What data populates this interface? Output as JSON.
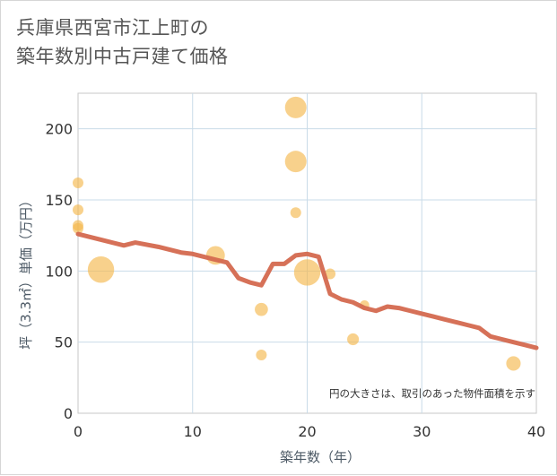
{
  "chart_data": {
    "type": "scatter",
    "title_lines": [
      "兵庫県西宮市江上町の",
      "築年数別中古戸建て価格"
    ],
    "xlabel": "築年数（年）",
    "ylabel": "坪（3.3㎡）単価（万円）",
    "xlim": [
      0,
      40
    ],
    "ylim": [
      0,
      225
    ],
    "x_ticks": [
      0,
      10,
      20,
      30,
      40
    ],
    "y_ticks": [
      0,
      50,
      100,
      150,
      200
    ],
    "grid": true,
    "note": "円の大きさは、取引のあった物件面積を示す",
    "colors": {
      "bubble": "#f5b84e",
      "trend": "#d4694f",
      "grid": "#c9dbe8",
      "plot_border": "#c7c7c7"
    },
    "bubbles": [
      {
        "x": 0,
        "y": 162,
        "size": 1
      },
      {
        "x": 0,
        "y": 143,
        "size": 1
      },
      {
        "x": 0,
        "y": 132,
        "size": 1
      },
      {
        "x": 0,
        "y": 130,
        "size": 1
      },
      {
        "x": 2,
        "y": 101,
        "size": 6
      },
      {
        "x": 12,
        "y": 111,
        "size": 3
      },
      {
        "x": 16,
        "y": 73,
        "size": 1.5
      },
      {
        "x": 16,
        "y": 41,
        "size": 1
      },
      {
        "x": 19,
        "y": 215,
        "size": 4
      },
      {
        "x": 19,
        "y": 177,
        "size": 4
      },
      {
        "x": 19,
        "y": 141,
        "size": 1
      },
      {
        "x": 20,
        "y": 99,
        "size": 6
      },
      {
        "x": 22,
        "y": 98,
        "size": 1
      },
      {
        "x": 24,
        "y": 52,
        "size": 1.2
      },
      {
        "x": 25,
        "y": 76,
        "size": 0.8
      },
      {
        "x": 38,
        "y": 35,
        "size": 1.8
      }
    ],
    "trend_line": {
      "x": [
        0,
        2,
        4,
        5,
        7,
        9,
        10,
        12,
        13,
        14,
        15,
        16,
        17,
        18,
        19,
        20,
        21,
        22,
        23,
        24,
        25,
        26,
        27,
        28,
        29,
        30,
        31,
        32,
        33,
        34,
        35,
        36,
        37,
        38,
        39,
        40
      ],
      "y": [
        126,
        122,
        118,
        120,
        117,
        113,
        112,
        108,
        106,
        95,
        92,
        90,
        105,
        105,
        111,
        112,
        110,
        84,
        80,
        78,
        74,
        72,
        75,
        74,
        72,
        70,
        68,
        66,
        64,
        62,
        60,
        54,
        52,
        50,
        48,
        46
      ]
    }
  }
}
